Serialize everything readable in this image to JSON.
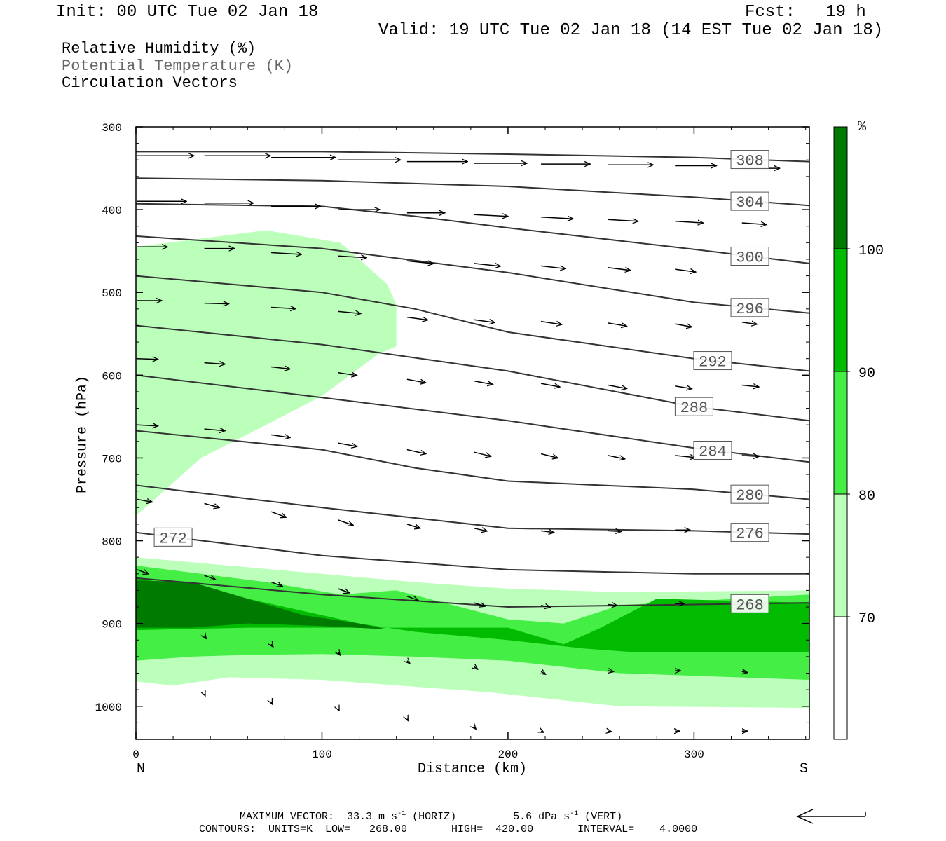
{
  "header": {
    "init": "Init: 00 UTC Tue 02 Jan 18",
    "fcst": "Fcst:   19 h",
    "valid": "Valid: 19 UTC Tue 02 Jan 18 (14 EST Tue 02 Jan 18)"
  },
  "legend": {
    "rh": "Relative Humidity (%)",
    "theta": "Potential Temperature (K)",
    "vectors": "Circulation Vectors"
  },
  "footer": {
    "max_vector_label": "MAXIMUM VECTOR:",
    "max_horiz": "33.3 m s",
    "horiz_tag": "(HORIZ)",
    "max_vert": "5.6 dPa s",
    "vert_tag": "(VERT)",
    "exp": "-1",
    "contours": "CONTOURS:  UNITS=K  LOW=   268.00       HIGH=  420.00       INTERVAL=    4.0000"
  },
  "colors": {
    "rh70": "#bbffbb",
    "rh80": "#44ee44",
    "rh90": "#00bb00",
    "rh100": "#007a00",
    "contour": "#333333"
  },
  "chart_data": {
    "type": "cross-section",
    "xlabel": "Distance (km)",
    "ylabel": "Pressure (hPa)",
    "x_ticks": [
      0,
      100,
      200,
      300
    ],
    "y_ticks": [
      300,
      400,
      500,
      600,
      700,
      800,
      900,
      1000
    ],
    "xlim": [
      0,
      362
    ],
    "ylim": [
      300,
      1040
    ],
    "y_inverted": true,
    "end_labels": {
      "left": "N",
      "right": "S"
    },
    "colorbar": {
      "unit": "%",
      "levels": [
        70,
        80,
        90,
        100
      ],
      "bands": [
        "white",
        "70-80",
        "80-90",
        "90-100",
        "100+"
      ]
    },
    "theta_contours": [
      {
        "label": "308",
        "value": 308,
        "points": [
          [
            0,
            330
          ],
          [
            100,
            330
          ],
          [
            200,
            333
          ],
          [
            300,
            337
          ],
          [
            362,
            342
          ]
        ]
      },
      {
        "label": "304",
        "value": 304,
        "points": [
          [
            0,
            362
          ],
          [
            100,
            365
          ],
          [
            200,
            372
          ],
          [
            300,
            385
          ],
          [
            362,
            395
          ]
        ]
      },
      {
        "label": "300",
        "value": 300,
        "points": [
          [
            0,
            393
          ],
          [
            100,
            396
          ],
          [
            150,
            408
          ],
          [
            200,
            422
          ],
          [
            300,
            448
          ],
          [
            362,
            465
          ]
        ]
      },
      {
        "label": "296",
        "value": 296,
        "points": [
          [
            0,
            432
          ],
          [
            100,
            447
          ],
          [
            200,
            476
          ],
          [
            300,
            512
          ],
          [
            362,
            525
          ]
        ]
      },
      {
        "label": "292",
        "value": 292,
        "points": [
          [
            0,
            480
          ],
          [
            100,
            500
          ],
          [
            150,
            520
          ],
          [
            200,
            548
          ],
          [
            300,
            580
          ],
          [
            362,
            595
          ]
        ]
      },
      {
        "label": "288",
        "value": 288,
        "points": [
          [
            0,
            540
          ],
          [
            100,
            563
          ],
          [
            200,
            595
          ],
          [
            300,
            638
          ],
          [
            362,
            655
          ]
        ]
      },
      {
        "label": "284",
        "value": 284,
        "points": [
          [
            0,
            600
          ],
          [
            100,
            627
          ],
          [
            200,
            655
          ],
          [
            300,
            688
          ],
          [
            362,
            705
          ]
        ]
      },
      {
        "label": "280",
        "value": 280,
        "points": [
          [
            0,
            667
          ],
          [
            100,
            690
          ],
          [
            150,
            712
          ],
          [
            200,
            728
          ],
          [
            300,
            738
          ],
          [
            362,
            750
          ]
        ]
      },
      {
        "label": "276",
        "value": 276,
        "points": [
          [
            0,
            733
          ],
          [
            100,
            760
          ],
          [
            200,
            785
          ],
          [
            300,
            788
          ],
          [
            362,
            792
          ]
        ]
      },
      {
        "label": "272",
        "value": 272,
        "points": [
          [
            0,
            790
          ],
          [
            100,
            818
          ],
          [
            200,
            835
          ],
          [
            300,
            840
          ],
          [
            362,
            840
          ]
        ]
      },
      {
        "label": "268",
        "value": 268,
        "points": [
          [
            0,
            845
          ],
          [
            100,
            865
          ],
          [
            200,
            880
          ],
          [
            300,
            877
          ],
          [
            362,
            875
          ]
        ]
      }
    ],
    "rh_regions": [
      {
        "level": 70,
        "points": [
          [
            0,
            445
          ],
          [
            70,
            425
          ],
          [
            110,
            440
          ],
          [
            135,
            490
          ],
          [
            140,
            515
          ],
          [
            140,
            565
          ],
          [
            130,
            575
          ],
          [
            100,
            625
          ],
          [
            70,
            660
          ],
          [
            35,
            700
          ],
          [
            0,
            770
          ]
        ]
      },
      {
        "level": 70,
        "points": [
          [
            0,
            820
          ],
          [
            50,
            830
          ],
          [
            100,
            840
          ],
          [
            150,
            850
          ],
          [
            200,
            858
          ],
          [
            260,
            862
          ],
          [
            362,
            860
          ],
          [
            362,
            1002
          ],
          [
            260,
            1000
          ],
          [
            190,
            983
          ],
          [
            100,
            968
          ],
          [
            50,
            965
          ],
          [
            20,
            975
          ],
          [
            0,
            970
          ]
        ]
      },
      {
        "level": 80,
        "points": [
          [
            0,
            830
          ],
          [
            70,
            850
          ],
          [
            110,
            865
          ],
          [
            140,
            860
          ],
          [
            200,
            895
          ],
          [
            230,
            900
          ],
          [
            260,
            878
          ],
          [
            362,
            865
          ],
          [
            362,
            968
          ],
          [
            260,
            960
          ],
          [
            200,
            945
          ],
          [
            150,
            940
          ],
          [
            100,
            937
          ],
          [
            60,
            938
          ],
          [
            30,
            940
          ],
          [
            0,
            945
          ]
        ]
      },
      {
        "level": 90,
        "points": [
          [
            0,
            845
          ],
          [
            40,
            860
          ],
          [
            80,
            880
          ],
          [
            120,
            900
          ],
          [
            150,
            910
          ],
          [
            200,
            920
          ],
          [
            240,
            930
          ],
          [
            270,
            935
          ],
          [
            300,
            935
          ],
          [
            362,
            935
          ],
          [
            362,
            875
          ],
          [
            280,
            870
          ],
          [
            250,
            905
          ],
          [
            230,
            925
          ],
          [
            200,
            905
          ],
          [
            140,
            905
          ],
          [
            100,
            905
          ],
          [
            60,
            905
          ],
          [
            0,
            908
          ]
        ]
      },
      {
        "level": 100,
        "points": [
          [
            0,
            848
          ],
          [
            30,
            850
          ],
          [
            60,
            870
          ],
          [
            90,
            890
          ],
          [
            120,
            900
          ],
          [
            135,
            907
          ],
          [
            100,
            903
          ],
          [
            60,
            900
          ],
          [
            30,
            905
          ],
          [
            0,
            905
          ]
        ]
      }
    ],
    "vectors": [
      {
        "x": 0,
        "p": 335,
        "u": 30,
        "w": 0
      },
      {
        "x": 36,
        "p": 335,
        "u": 35,
        "w": 0
      },
      {
        "x": 72,
        "p": 337,
        "u": 34,
        "w": 0
      },
      {
        "x": 108,
        "p": 340,
        "u": 33,
        "w": 0
      },
      {
        "x": 145,
        "p": 342,
        "u": 32,
        "w": 0
      },
      {
        "x": 181,
        "p": 344,
        "u": 28,
        "w": 0
      },
      {
        "x": 217,
        "p": 345,
        "u": 26,
        "w": 0
      },
      {
        "x": 253,
        "p": 346,
        "u": 24,
        "w": 0
      },
      {
        "x": 289,
        "p": 347,
        "u": 22,
        "w": 0
      },
      {
        "x": 325,
        "p": 350,
        "u": 20,
        "w": 0
      },
      {
        "x": 0,
        "p": 390,
        "u": 26,
        "w": 0
      },
      {
        "x": 36,
        "p": 392,
        "u": 26,
        "w": 0
      },
      {
        "x": 72,
        "p": 396,
        "u": 26,
        "w": 0
      },
      {
        "x": 108,
        "p": 400,
        "u": 22,
        "w": 0
      },
      {
        "x": 145,
        "p": 404,
        "u": 20,
        "w": 0
      },
      {
        "x": 181,
        "p": 406,
        "u": 18,
        "w": 0.5
      },
      {
        "x": 217,
        "p": 409,
        "u": 17,
        "w": 0.5
      },
      {
        "x": 253,
        "p": 412,
        "u": 16,
        "w": 0.5
      },
      {
        "x": 289,
        "p": 414,
        "u": 15,
        "w": 0.5
      },
      {
        "x": 325,
        "p": 416,
        "u": 13,
        "w": 0.5
      },
      {
        "x": 0,
        "p": 445,
        "u": 16,
        "w": 0
      },
      {
        "x": 36,
        "p": 447,
        "u": 16,
        "w": 0
      },
      {
        "x": 72,
        "p": 452,
        "u": 16,
        "w": 0.5
      },
      {
        "x": 108,
        "p": 456,
        "u": 15,
        "w": 0.5
      },
      {
        "x": 145,
        "p": 462,
        "u": 14,
        "w": 0.8
      },
      {
        "x": 181,
        "p": 465,
        "u": 14,
        "w": 0.8
      },
      {
        "x": 217,
        "p": 468,
        "u": 13,
        "w": 0.8
      },
      {
        "x": 253,
        "p": 470,
        "u": 12,
        "w": 0.8
      },
      {
        "x": 289,
        "p": 472,
        "u": 11,
        "w": 0.8
      },
      {
        "x": 0,
        "p": 510,
        "u": 13,
        "w": 0
      },
      {
        "x": 36,
        "p": 513,
        "u": 13,
        "w": 0.2
      },
      {
        "x": 72,
        "p": 518,
        "u": 13,
        "w": 0.4
      },
      {
        "x": 108,
        "p": 523,
        "u": 12,
        "w": 0.6
      },
      {
        "x": 145,
        "p": 530,
        "u": 11,
        "w": 0.8
      },
      {
        "x": 181,
        "p": 533,
        "u": 11,
        "w": 0.8
      },
      {
        "x": 217,
        "p": 535,
        "u": 11,
        "w": 0.9
      },
      {
        "x": 253,
        "p": 537,
        "u": 10,
        "w": 0.9
      },
      {
        "x": 289,
        "p": 538,
        "u": 9,
        "w": 0.9
      },
      {
        "x": 325,
        "p": 536,
        "u": 8,
        "w": 0.6
      },
      {
        "x": 0,
        "p": 580,
        "u": 11,
        "w": 0.2
      },
      {
        "x": 36,
        "p": 585,
        "u": 11,
        "w": 0.4
      },
      {
        "x": 72,
        "p": 590,
        "u": 10,
        "w": 0.6
      },
      {
        "x": 108,
        "p": 597,
        "u": 10,
        "w": 0.8
      },
      {
        "x": 145,
        "p": 605,
        "u": 10,
        "w": 1
      },
      {
        "x": 181,
        "p": 607,
        "u": 10,
        "w": 1
      },
      {
        "x": 217,
        "p": 610,
        "u": 10,
        "w": 1
      },
      {
        "x": 253,
        "p": 612,
        "u": 10,
        "w": 1
      },
      {
        "x": 289,
        "p": 613,
        "u": 9,
        "w": 0.8
      },
      {
        "x": 325,
        "p": 612,
        "u": 9,
        "w": 0.5
      },
      {
        "x": 0,
        "p": 660,
        "u": 11,
        "w": 0.3
      },
      {
        "x": 36,
        "p": 665,
        "u": 11,
        "w": 0.5
      },
      {
        "x": 72,
        "p": 672,
        "u": 10,
        "w": 0.8
      },
      {
        "x": 108,
        "p": 682,
        "u": 10,
        "w": 1
      },
      {
        "x": 145,
        "p": 690,
        "u": 10,
        "w": 1.2
      },
      {
        "x": 181,
        "p": 693,
        "u": 9,
        "w": 1.2
      },
      {
        "x": 217,
        "p": 695,
        "u": 9,
        "w": 1.2
      },
      {
        "x": 253,
        "p": 697,
        "u": 9,
        "w": 1
      },
      {
        "x": 289,
        "p": 697,
        "u": 11,
        "w": 0.6
      },
      {
        "x": 325,
        "p": 697,
        "u": 9,
        "w": 0.3
      },
      {
        "x": 0,
        "p": 750,
        "u": 8,
        "w": 0.8
      },
      {
        "x": 36,
        "p": 755,
        "u": 8,
        "w": 1.2
      },
      {
        "x": 72,
        "p": 765,
        "u": 8,
        "w": 1.6
      },
      {
        "x": 108,
        "p": 775,
        "u": 8,
        "w": 1.5
      },
      {
        "x": 145,
        "p": 780,
        "u": 7,
        "w": 1.2
      },
      {
        "x": 181,
        "p": 785,
        "u": 7,
        "w": 0.8
      },
      {
        "x": 217,
        "p": 788,
        "u": 7,
        "w": 0.5
      },
      {
        "x": 253,
        "p": 788,
        "u": 7,
        "w": 0.2
      },
      {
        "x": 289,
        "p": 787,
        "u": 8,
        "w": 0
      },
      {
        "x": 325,
        "p": 788,
        "u": 8,
        "w": 0
      },
      {
        "x": 0,
        "p": 835,
        "u": 6,
        "w": 1.2
      },
      {
        "x": 36,
        "p": 842,
        "u": 6,
        "w": 1.2
      },
      {
        "x": 72,
        "p": 850,
        "u": 6,
        "w": 1.2
      },
      {
        "x": 108,
        "p": 858,
        "u": 6,
        "w": 1.2
      },
      {
        "x": 145,
        "p": 867,
        "u": 6,
        "w": 1.2
      },
      {
        "x": 181,
        "p": 875,
        "u": 6,
        "w": 1
      },
      {
        "x": 217,
        "p": 878,
        "u": 5,
        "w": 0.6
      },
      {
        "x": 253,
        "p": 877,
        "u": 5,
        "w": 0.3
      },
      {
        "x": 289,
        "p": 876,
        "u": 5,
        "w": 0
      },
      {
        "x": 325,
        "p": 876,
        "u": 5,
        "w": 0
      },
      {
        "x": 36,
        "p": 915,
        "u": 1,
        "w": 0.8
      },
      {
        "x": 72,
        "p": 925,
        "u": 1,
        "w": 0.8
      },
      {
        "x": 108,
        "p": 935,
        "u": 1,
        "w": 0.8
      },
      {
        "x": 145,
        "p": 945,
        "u": 1.5,
        "w": 0.8
      },
      {
        "x": 181,
        "p": 952,
        "u": 2,
        "w": 0.8
      },
      {
        "x": 217,
        "p": 958,
        "u": 2.5,
        "w": 0.8
      },
      {
        "x": 253,
        "p": 957,
        "u": 3,
        "w": 0.3
      },
      {
        "x": 289,
        "p": 957,
        "u": 3,
        "w": 0
      },
      {
        "x": 325,
        "p": 958,
        "u": 3,
        "w": 0.3
      },
      {
        "x": 36,
        "p": 985,
        "u": 0.5,
        "w": 0.6
      },
      {
        "x": 72,
        "p": 995,
        "u": 0.5,
        "w": 0.6
      },
      {
        "x": 108,
        "p": 1003,
        "u": 0.5,
        "w": 0.6
      },
      {
        "x": 145,
        "p": 1015,
        "u": 0.5,
        "w": 0.6
      },
      {
        "x": 181,
        "p": 1025,
        "u": 1,
        "w": 0.6
      },
      {
        "x": 217,
        "p": 1030,
        "u": 1.5,
        "w": 0.4
      },
      {
        "x": 253,
        "p": 1030,
        "u": 2,
        "w": 0.2
      },
      {
        "x": 289,
        "p": 1030,
        "u": 2.5,
        "w": 0
      },
      {
        "x": 325,
        "p": 1030,
        "u": 3,
        "w": 0
      }
    ]
  }
}
